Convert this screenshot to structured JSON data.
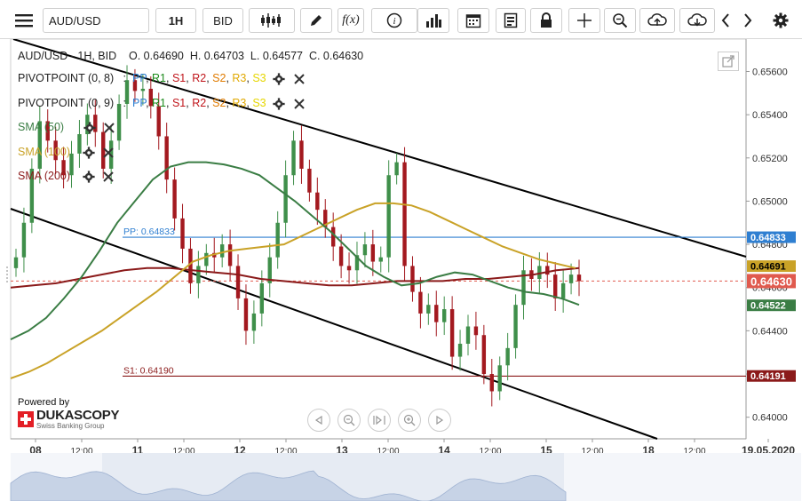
{
  "toolbar": {
    "symbol": "AUD/USD",
    "period": "1H",
    "side": "BID",
    "icons": [
      "menu-icon",
      "candles-icon",
      "pencil-icon",
      "function-icon",
      "info-icon",
      "bars-icon",
      "calendar-icon",
      "report-icon",
      "lock-icon",
      "crosshair-icon",
      "zoom-icon",
      "upload-icon",
      "download-icon",
      "left-arrow-icon",
      "right-arrow-icon",
      "gear-icon"
    ]
  },
  "legend": {
    "ohlc": "AUD/USD - 1H, BID    O. 0.64690  H. 0.64703  L. 0.64577  C. 0.64630",
    "pivots": [
      {
        "name": "PIVOTPOINT (0, 8)",
        "levels": [
          "PP",
          "R1",
          "S1",
          "R2",
          "S2",
          "R3",
          "S3"
        ]
      },
      {
        "name": "PIVOTPOINT (0, 9)",
        "levels": [
          "PP",
          "R1",
          "S1",
          "R2",
          "S2",
          "R3",
          "S3"
        ]
      }
    ],
    "sma": [
      "SMA (50)",
      "SMA (100)",
      "SMA (200)"
    ]
  },
  "colors": {
    "pp": "#2f7fd1",
    "r1": "#1a8a1a",
    "s1": "#c0151b",
    "r2": "#c0151b",
    "s2": "#e07b00",
    "r3": "#e0a800",
    "s3": "#e6d600",
    "sma50": "#3a7d44",
    "sma100": "#c9a227",
    "sma200": "#8b1a1a",
    "up": "#3f8f4a",
    "down": "#a3191f",
    "ppline": "#2f7fd1",
    "s1line": "#8b1a1a",
    "last": "#e05a4e"
  },
  "chart_data": {
    "type": "candlestick",
    "ylim": [
      0.639,
      0.6575
    ],
    "yticks": [
      0.64,
      0.642,
      0.644,
      0.646,
      0.648,
      0.65,
      0.652,
      0.654,
      0.656
    ],
    "ytick_labels": [
      "0.64000",
      "0.64200",
      "0.64400",
      "0.64600",
      "0.64800",
      "0.65000",
      "0.65200",
      "0.65400",
      "0.65600"
    ],
    "xlabels": [
      "08",
      "12:00",
      "11",
      "12:00",
      "12",
      "12:00",
      "13",
      "12:00",
      "14",
      "12:00",
      "15",
      "12:00",
      "18",
      "12:00",
      "19.05.2020"
    ],
    "hlines": [
      {
        "label": "PP: 0.64833",
        "value": 0.64833,
        "badge": "0.64833"
      },
      {
        "label": "S1: 0.64190",
        "value": 0.6419,
        "badge": "0.64191"
      }
    ],
    "badges": {
      "sma100": "0.64691",
      "last": "0.64630",
      "sma50": "0.64522"
    },
    "close_path": [
      0.6474,
      0.649,
      0.6515,
      0.6537,
      0.6528,
      0.6519,
      0.6512,
      0.6522,
      0.6531,
      0.654,
      0.6532,
      0.6515,
      0.6528,
      0.6545,
      0.6556,
      0.6551,
      0.6552,
      0.6544,
      0.653,
      0.651,
      0.6492,
      0.6478,
      0.6462,
      0.647,
      0.6476,
      0.6474,
      0.648,
      0.647,
      0.6455,
      0.644,
      0.6448,
      0.6462,
      0.6474,
      0.649,
      0.6512,
      0.6528,
      0.6515,
      0.6504,
      0.6496,
      0.6488,
      0.6479,
      0.647,
      0.6468,
      0.6475,
      0.648,
      0.6472,
      0.6474,
      0.6512,
      0.6518,
      0.647,
      0.6458,
      0.6448,
      0.6452,
      0.6444,
      0.645,
      0.6428,
      0.6434,
      0.6442,
      0.6438,
      0.642,
      0.6412,
      0.6424,
      0.6432,
      0.6452,
      0.6468,
      0.6464,
      0.647,
      0.6466,
      0.6455,
      0.6462,
      0.6466,
      0.6463
    ],
    "sma50": [
      0.6436,
      0.644,
      0.6446,
      0.6455,
      0.6465,
      0.6477,
      0.649,
      0.65,
      0.651,
      0.6516,
      0.6518,
      0.6518,
      0.6517,
      0.6515,
      0.6512,
      0.6506,
      0.65,
      0.6493,
      0.6486,
      0.6478,
      0.647,
      0.6465,
      0.6461,
      0.6462,
      0.6465,
      0.6467,
      0.6466,
      0.6463,
      0.646,
      0.6458,
      0.6457,
      0.6455,
      0.6452
    ],
    "sma100": [
      0.6418,
      0.6421,
      0.6425,
      0.643,
      0.6435,
      0.644,
      0.6446,
      0.6452,
      0.6458,
      0.6465,
      0.6472,
      0.6475,
      0.6477,
      0.6478,
      0.6479,
      0.648,
      0.6484,
      0.6488,
      0.6492,
      0.6496,
      0.6499,
      0.6499,
      0.6498,
      0.6495,
      0.6491,
      0.6487,
      0.6483,
      0.6479,
      0.6476,
      0.6473,
      0.6471,
      0.6469
    ],
    "sma200": [
      0.646,
      0.6461,
      0.6462,
      0.6464,
      0.6466,
      0.6468,
      0.6469,
      0.6469,
      0.6468,
      0.6467,
      0.6466,
      0.6464,
      0.6463,
      0.6462,
      0.6461,
      0.6461,
      0.6462,
      0.6463,
      0.6463,
      0.6463,
      0.6464,
      0.6464,
      0.6465,
      0.6466,
      0.6468,
      0.6469
    ]
  }
}
